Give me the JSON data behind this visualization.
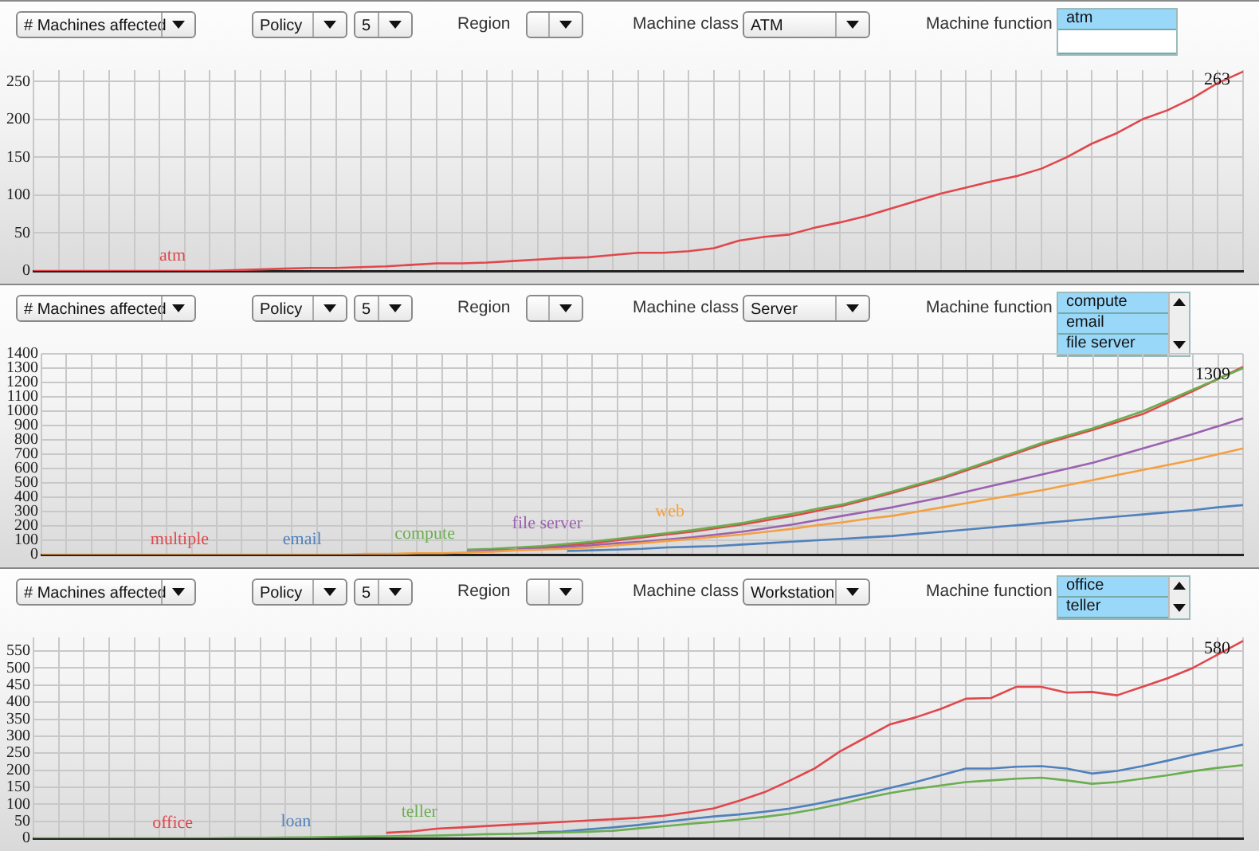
{
  "chart_data": [
    {
      "type": "line",
      "categories": [
        null,
        null,
        null,
        null,
        null,
        null,
        null,
        null,
        null,
        null,
        null,
        null,
        null,
        null,
        null,
        null,
        null,
        null,
        null,
        null,
        null,
        null,
        null,
        null,
        null,
        null,
        null,
        null,
        null,
        null,
        null,
        null,
        null,
        null,
        null,
        null,
        null,
        null,
        null,
        null,
        null,
        null,
        null,
        null,
        null,
        null,
        null,
        null,
        null
      ],
      "series": [
        {
          "name": "atm",
          "color": "#e0474c",
          "values": [
            0,
            0,
            0,
            0,
            0,
            0,
            0,
            0,
            1,
            2,
            3,
            4,
            4,
            5,
            6,
            8,
            10,
            10,
            11,
            13,
            15,
            17,
            18,
            21,
            24,
            24,
            26,
            30,
            40,
            45,
            48,
            57,
            64,
            72,
            82,
            92,
            102,
            110,
            118,
            125,
            135,
            150,
            168,
            182,
            200,
            212,
            228,
            248,
            263
          ],
          "value_labels": [
            null,
            null,
            null,
            null,
            null,
            null,
            null,
            null,
            null,
            null,
            null,
            null,
            null,
            null,
            null,
            null,
            null,
            null,
            null,
            null,
            null,
            null,
            null,
            null,
            null,
            null,
            null,
            null,
            null,
            null,
            null,
            null,
            null,
            null,
            null,
            null,
            null,
            null,
            null,
            null,
            null,
            null,
            null,
            null,
            null,
            null,
            null,
            null,
            "263"
          ]
        }
      ],
      "ylim": [
        0,
        265
      ],
      "yticks": [
        0,
        50,
        100,
        150,
        200,
        250
      ],
      "grid": true,
      "legend": false,
      "tick_labels": "y",
      "annotations": [
        "# Machines affected",
        "Policy",
        "5",
        "Region",
        "Machine class",
        "ATM",
        "Machine function",
        "atm"
      ]
    },
    {
      "type": "line",
      "categories": [
        null,
        null,
        null,
        null,
        null,
        null,
        null,
        null,
        null,
        null,
        null,
        null,
        null,
        null,
        null,
        null,
        null,
        null,
        null,
        null,
        null,
        null,
        null,
        null,
        null,
        null,
        null,
        null,
        null,
        null,
        null,
        null,
        null,
        null,
        null,
        null,
        null,
        null,
        null,
        null,
        null,
        null,
        null,
        null,
        null,
        null,
        null,
        null,
        null
      ],
      "series": [
        {
          "name": "multiple",
          "color": "#e0474c",
          "values": [
            null,
            null,
            null,
            null,
            null,
            null,
            null,
            null,
            null,
            null,
            null,
            null,
            null,
            null,
            null,
            null,
            null,
            null,
            null,
            45,
            55,
            65,
            80,
            100,
            120,
            140,
            160,
            185,
            210,
            240,
            270,
            305,
            340,
            385,
            430,
            480,
            530,
            590,
            650,
            710,
            770,
            820,
            870,
            925,
            980,
            1060,
            1140,
            1225,
            1309
          ],
          "value_labels": [
            null,
            null,
            null,
            null,
            null,
            null,
            null,
            null,
            null,
            null,
            null,
            null,
            null,
            null,
            null,
            null,
            null,
            null,
            null,
            null,
            null,
            null,
            null,
            null,
            null,
            null,
            null,
            null,
            null,
            null,
            null,
            null,
            null,
            null,
            null,
            null,
            null,
            null,
            null,
            null,
            null,
            null,
            null,
            null,
            null,
            null,
            null,
            null,
            "1309"
          ]
        },
        {
          "name": "email",
          "color": "#4f81bd",
          "values": [
            null,
            null,
            null,
            null,
            null,
            null,
            null,
            null,
            null,
            null,
            null,
            null,
            null,
            null,
            null,
            null,
            null,
            null,
            null,
            null,
            null,
            25,
            30,
            35,
            40,
            50,
            55,
            60,
            70,
            80,
            90,
            100,
            110,
            120,
            130,
            145,
            160,
            175,
            190,
            205,
            220,
            235,
            250,
            265,
            280,
            295,
            310,
            330,
            345
          ]
        },
        {
          "name": "compute",
          "color": "#6aae4f",
          "values": [
            null,
            null,
            null,
            null,
            null,
            null,
            null,
            null,
            null,
            null,
            null,
            null,
            null,
            null,
            null,
            null,
            null,
            35,
            40,
            50,
            60,
            75,
            90,
            110,
            130,
            150,
            170,
            195,
            220,
            255,
            285,
            320,
            350,
            395,
            440,
            490,
            540,
            600,
            660,
            720,
            780,
            830,
            880,
            940,
            1000,
            1075,
            1150,
            1225,
            1300
          ]
        },
        {
          "name": "file server",
          "color": "#9b62b0",
          "values": [
            null,
            null,
            null,
            null,
            null,
            null,
            null,
            null,
            null,
            null,
            null,
            null,
            null,
            null,
            null,
            null,
            null,
            20,
            30,
            35,
            45,
            55,
            65,
            80,
            90,
            105,
            120,
            140,
            160,
            185,
            210,
            240,
            270,
            300,
            330,
            365,
            400,
            440,
            480,
            520,
            560,
            600,
            640,
            690,
            740,
            790,
            840,
            895,
            950
          ]
        },
        {
          "name": "web",
          "color": "#f5a040",
          "values": [
            0,
            0,
            0,
            0,
            0,
            0,
            0,
            0,
            0,
            0,
            0,
            0,
            0,
            5,
            5,
            10,
            10,
            15,
            20,
            30,
            35,
            40,
            50,
            65,
            80,
            95,
            110,
            125,
            140,
            160,
            180,
            205,
            225,
            250,
            270,
            300,
            330,
            360,
            390,
            420,
            450,
            485,
            520,
            555,
            590,
            625,
            660,
            700,
            740
          ]
        }
      ],
      "ylim": [
        0,
        1400
      ],
      "yticks": [
        0,
        100,
        200,
        300,
        400,
        500,
        600,
        700,
        800,
        900,
        1000,
        1100,
        1200,
        1300,
        1400
      ],
      "grid": true,
      "legend": false,
      "tick_labels": "y",
      "annotations": [
        "# Machines affected",
        "Policy",
        "5",
        "Region",
        "Machine class",
        "Server",
        "Machine function",
        "compute",
        "email",
        "file server"
      ]
    },
    {
      "type": "line",
      "categories": [
        null,
        null,
        null,
        null,
        null,
        null,
        null,
        null,
        null,
        null,
        null,
        null,
        null,
        null,
        null,
        null,
        null,
        null,
        null,
        null,
        null,
        null,
        null,
        null,
        null,
        null,
        null,
        null,
        null,
        null,
        null,
        null,
        null,
        null,
        null,
        null,
        null,
        null,
        null,
        null,
        null,
        null,
        null,
        null,
        null,
        null,
        null,
        null,
        null
      ],
      "series": [
        {
          "name": "office",
          "color": "#e0474c",
          "values": [
            null,
            null,
            null,
            null,
            null,
            null,
            null,
            null,
            null,
            null,
            null,
            null,
            null,
            null,
            16,
            20,
            28,
            32,
            36,
            40,
            44,
            48,
            52,
            56,
            60,
            66,
            76,
            88,
            110,
            135,
            169,
            205,
            255,
            295,
            335,
            355,
            380,
            410,
            412,
            445,
            445,
            428,
            430,
            420,
            445,
            470,
            500,
            540,
            580
          ],
          "value_labels": [
            null,
            null,
            null,
            null,
            null,
            null,
            null,
            null,
            null,
            null,
            null,
            null,
            null,
            null,
            null,
            null,
            null,
            null,
            null,
            null,
            null,
            null,
            null,
            null,
            null,
            null,
            null,
            null,
            null,
            null,
            null,
            null,
            null,
            null,
            null,
            null,
            null,
            null,
            null,
            null,
            null,
            null,
            null,
            null,
            null,
            null,
            null,
            null,
            "580"
          ]
        },
        {
          "name": "loan",
          "color": "#4f81bd",
          "values": [
            null,
            null,
            null,
            null,
            null,
            null,
            null,
            null,
            null,
            null,
            null,
            null,
            null,
            null,
            null,
            null,
            null,
            null,
            null,
            null,
            18,
            20,
            26,
            32,
            39,
            48,
            56,
            64,
            70,
            78,
            87,
            100,
            115,
            130,
            148,
            165,
            185,
            205,
            205,
            210,
            212,
            205,
            190,
            198,
            212,
            228,
            245,
            260,
            275
          ]
        },
        {
          "name": "teller",
          "color": "#6aae4f",
          "values": [
            0,
            0,
            0,
            0,
            0,
            0,
            0,
            0,
            1,
            1,
            2,
            3,
            4,
            5,
            6,
            7,
            8,
            10,
            12,
            13,
            15,
            17,
            19,
            22,
            29,
            35,
            42,
            48,
            55,
            63,
            72,
            85,
            100,
            118,
            133,
            145,
            155,
            165,
            170,
            175,
            178,
            170,
            160,
            165,
            175,
            185,
            197,
            207,
            215
          ]
        }
      ],
      "ylim": [
        0,
        590
      ],
      "yticks": [
        0,
        50,
        100,
        150,
        200,
        250,
        300,
        350,
        400,
        450,
        500,
        550
      ],
      "grid": true,
      "legend": false,
      "tick_labels": "y",
      "annotations": [
        "# Machines affected",
        "Policy",
        "5",
        "Region",
        "Machine class",
        "Workstation",
        "Machine function",
        "office",
        "teller"
      ]
    }
  ]
}
